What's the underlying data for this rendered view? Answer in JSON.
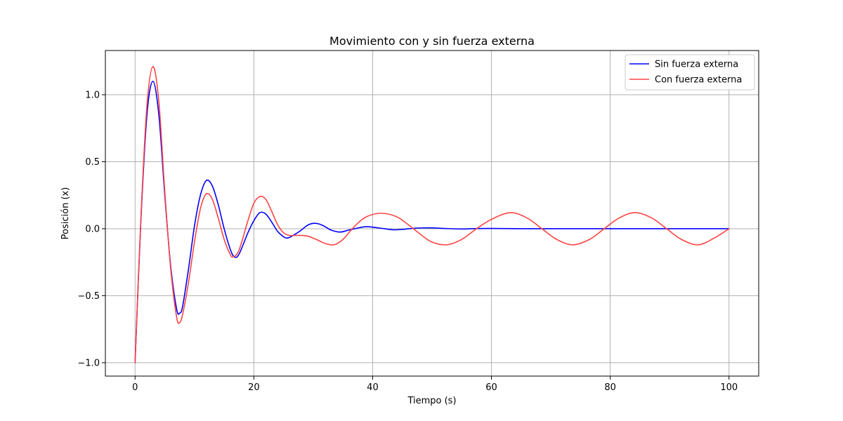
{
  "chart_data": {
    "type": "line",
    "title": "Movimiento con y sin fuerza externa",
    "xlabel": "Tiempo (s)",
    "ylabel": "Posición (x)",
    "xlim": [
      -5,
      105
    ],
    "ylim": [
      -1.1,
      1.33
    ],
    "xticks": [
      0,
      20,
      40,
      60,
      80,
      100
    ],
    "xtick_labels": [
      "0",
      "20",
      "40",
      "60",
      "80",
      "100"
    ],
    "yticks": [
      -1.0,
      -0.5,
      0.0,
      0.5,
      1.0
    ],
    "ytick_labels": [
      "−1.0",
      "−0.5",
      "0.0",
      "0.5",
      "1.0"
    ],
    "grid": true,
    "legend_position": "top-right",
    "series": [
      {
        "name": "Sin fuerza externa",
        "color": "#0000ff",
        "x": [
          0,
          1,
          2,
          3,
          4,
          5,
          6,
          7,
          7.5,
          8,
          9,
          10,
          11,
          12,
          13,
          14,
          15,
          16,
          16.7,
          17.5,
          19,
          20,
          21,
          22,
          23,
          24,
          25,
          25.5,
          26,
          27,
          28,
          29,
          30,
          31,
          32,
          33,
          34.5,
          36,
          38,
          39,
          40,
          42,
          43.5,
          45,
          47.5,
          50,
          52,
          55,
          57,
          60,
          65,
          70,
          80,
          90,
          100
        ],
        "y": [
          -1.0,
          0.08,
          0.85,
          1.1,
          0.85,
          0.25,
          -0.28,
          -0.6,
          -0.63,
          -0.58,
          -0.3,
          0.02,
          0.25,
          0.36,
          0.32,
          0.18,
          0.0,
          -0.15,
          -0.21,
          -0.19,
          -0.03,
          0.06,
          0.12,
          0.11,
          0.05,
          -0.02,
          -0.06,
          -0.07,
          -0.065,
          -0.04,
          -0.01,
          0.025,
          0.04,
          0.035,
          0.015,
          -0.01,
          -0.025,
          -0.01,
          0.01,
          0.015,
          0.012,
          0.0,
          -0.008,
          -0.005,
          0.005,
          0.006,
          0.002,
          -0.002,
          0.001,
          0.002,
          0.0,
          0.0,
          0.0,
          0.0,
          0.0
        ]
      },
      {
        "name": "Con fuerza externa",
        "color": "#ff4444",
        "x": [
          0,
          1,
          2,
          3,
          4,
          5,
          6,
          7,
          7.5,
          8,
          9,
          10,
          11,
          12,
          13,
          14,
          15,
          16,
          16.5,
          17.5,
          19,
          20,
          21,
          22,
          23,
          24,
          25,
          26,
          27,
          28,
          29,
          30,
          31,
          32,
          33.5,
          35,
          37,
          39,
          41.5,
          44,
          46,
          48,
          50,
          52.5,
          55,
          57.5,
          60,
          63.2,
          66,
          68.5,
          71,
          73.7,
          76.5,
          79,
          81.5,
          84.2,
          87,
          89.5,
          92,
          94.8,
          97.5,
          100
        ],
        "y": [
          -1.0,
          0.1,
          0.92,
          1.21,
          0.95,
          0.28,
          -0.3,
          -0.66,
          -0.7,
          -0.64,
          -0.4,
          -0.1,
          0.15,
          0.26,
          0.22,
          0.08,
          -0.08,
          -0.19,
          -0.21,
          -0.16,
          0.06,
          0.19,
          0.24,
          0.22,
          0.13,
          0.03,
          -0.03,
          -0.05,
          -0.05,
          -0.05,
          -0.055,
          -0.07,
          -0.09,
          -0.11,
          -0.12,
          -0.08,
          0.02,
          0.09,
          0.115,
          0.09,
          0.03,
          -0.04,
          -0.1,
          -0.12,
          -0.08,
          0.0,
          0.07,
          0.12,
          0.08,
          0.0,
          -0.08,
          -0.12,
          -0.08,
          0.0,
          0.08,
          0.12,
          0.08,
          0.0,
          -0.08,
          -0.12,
          -0.07,
          0.0
        ]
      }
    ]
  }
}
